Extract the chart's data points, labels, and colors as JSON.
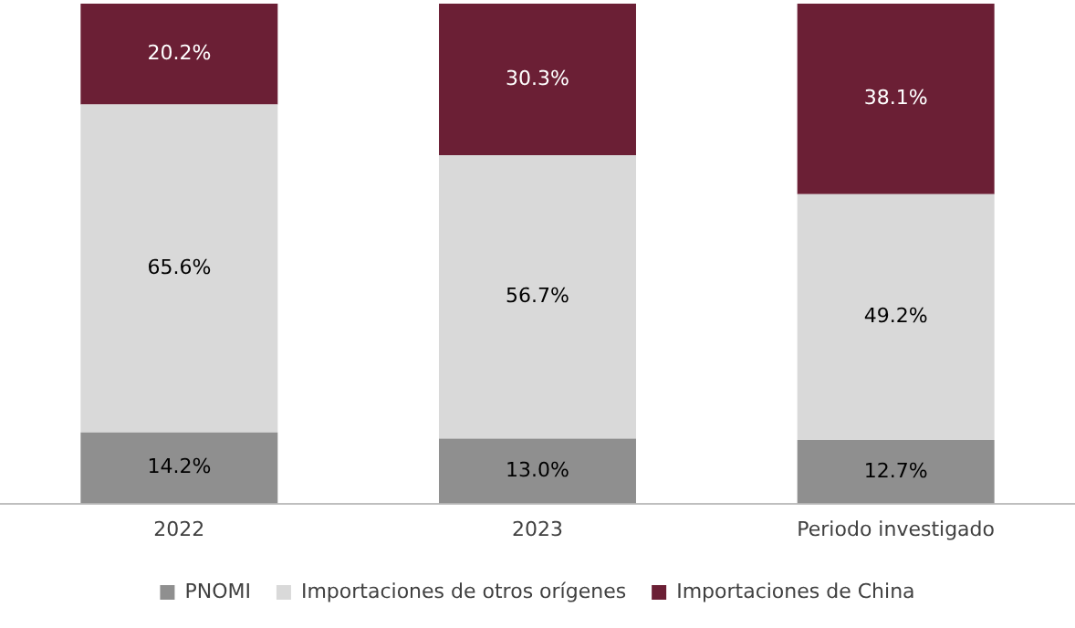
{
  "chart_data": {
    "type": "bar",
    "stacked": true,
    "categories": [
      "2022",
      "2023",
      "Periodo investigado"
    ],
    "ylim": [
      0,
      100
    ],
    "tick_labels": "x",
    "grid": false,
    "legend": "bottom",
    "series": [
      {
        "name": "PNOMI",
        "color": "#8f8f8f",
        "values": [
          14.2,
          13.0,
          12.7
        ],
        "value_labels": [
          "14.2%",
          "13.0%",
          "12.7%"
        ]
      },
      {
        "name": "Importaciones de otros orígenes",
        "color": "#d9d9d9",
        "values": [
          65.6,
          56.7,
          49.2
        ],
        "value_labels": [
          "65.6%",
          "56.7%",
          "49.2%"
        ]
      },
      {
        "name": "Importaciones de China",
        "color": "#6b1f35",
        "values": [
          20.2,
          30.3,
          38.1
        ],
        "value_labels": [
          "20.2%",
          "30.3%",
          "38.1%"
        ]
      }
    ]
  }
}
